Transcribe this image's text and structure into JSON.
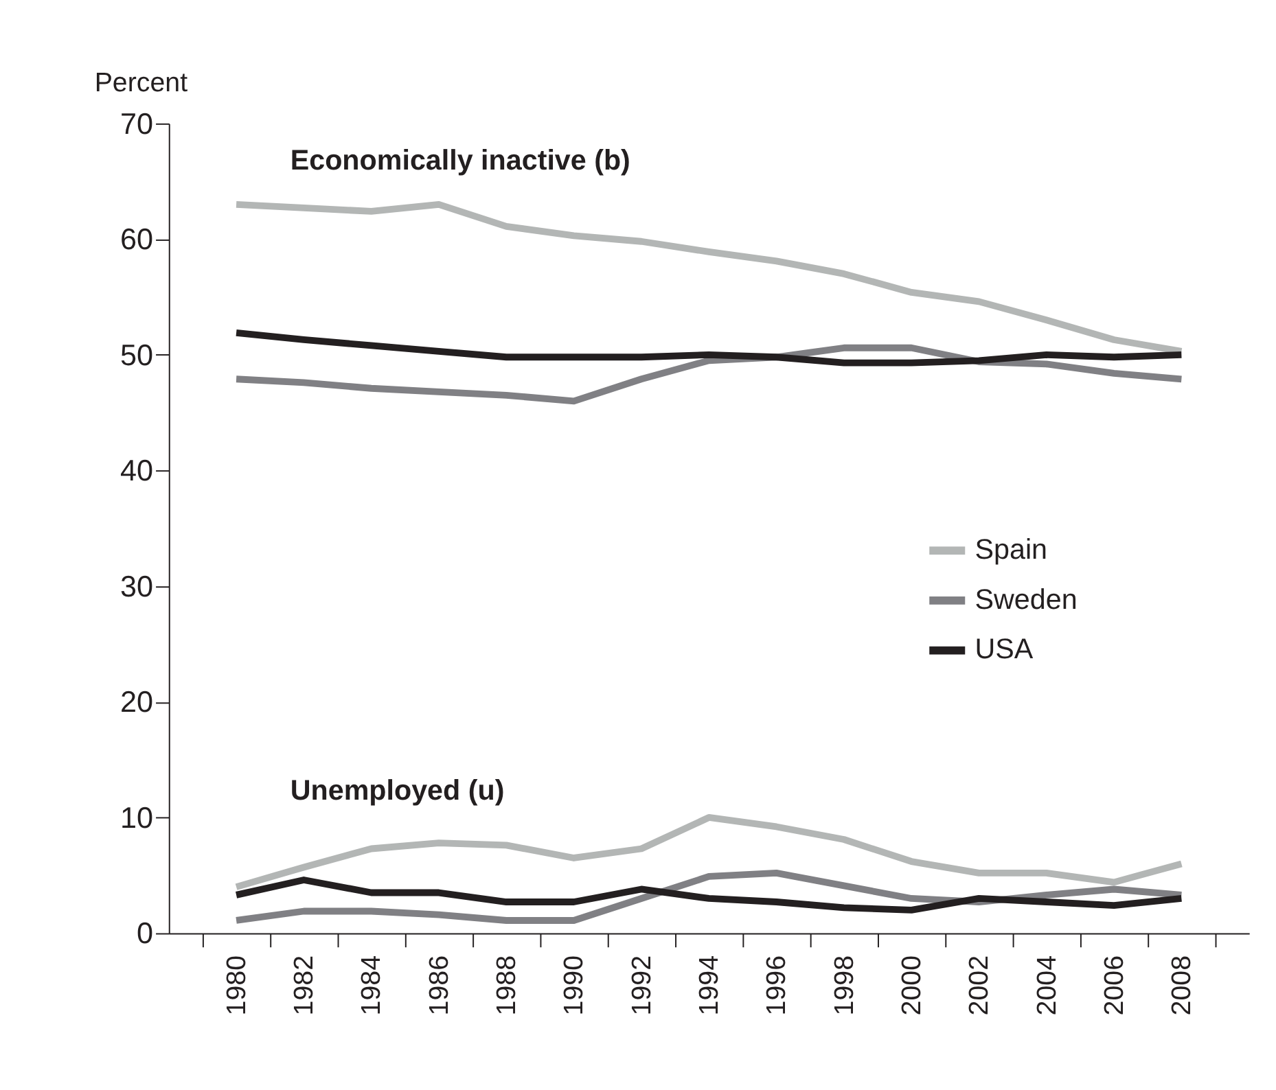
{
  "chart_data": {
    "type": "line",
    "ylabel": "Percent",
    "categories": [
      "1980",
      "1982",
      "1984",
      "1986",
      "1988",
      "1990",
      "1992",
      "1994",
      "1996",
      "1998",
      "2000",
      "2002",
      "2004",
      "2006",
      "2008"
    ],
    "ylim": [
      0,
      70
    ],
    "yticks": [
      0,
      10,
      20,
      30,
      40,
      50,
      60,
      70
    ],
    "grid": false,
    "legend": "right",
    "marker": "none",
    "line_style": "solid",
    "annotations": [
      "Economically inactive (b)",
      "Unemployed (u)"
    ],
    "series": [
      {
        "name": "Spain",
        "color": "#b3b6b5",
        "values": [
          63,
          62.7,
          62.4,
          63,
          61.1,
          60.3,
          59.8,
          58.9,
          58.1,
          57,
          55.4,
          54.6,
          53,
          51.3,
          50.3
        ]
      },
      {
        "name": "Sweden",
        "color": "#808084",
        "values": [
          47.9,
          47.6,
          47.1,
          46.8,
          46.5,
          46,
          47.9,
          49.5,
          49.8,
          50.6,
          50.6,
          49.4,
          49.2,
          48.4,
          47.9
        ]
      },
      {
        "name": "USA",
        "color": "#231f20",
        "values": [
          51.9,
          51.3,
          50.8,
          50.3,
          49.8,
          49.8,
          49.8,
          50,
          49.8,
          49.3,
          49.3,
          49.5,
          50,
          49.8,
          50
        ]
      },
      {
        "color": "#b3b6b5",
        "values": [
          4,
          5.7,
          7.3,
          7.8,
          7.6,
          6.5,
          7.3,
          10,
          9.2,
          8.1,
          6.2,
          5.2,
          5.2,
          4.4,
          6
        ]
      },
      {
        "color": "#808084",
        "values": [
          1.1,
          1.9,
          1.9,
          1.6,
          1.1,
          1.1,
          3,
          4.9,
          5.2,
          4.1,
          3,
          2.7,
          3.3,
          3.8,
          3.3
        ]
      },
      {
        "color": "#231f20",
        "values": [
          3.3,
          4.6,
          3.5,
          3.5,
          2.7,
          2.7,
          3.8,
          3,
          2.7,
          2.2,
          2,
          3,
          2.7,
          2.4,
          3
        ]
      }
    ]
  }
}
